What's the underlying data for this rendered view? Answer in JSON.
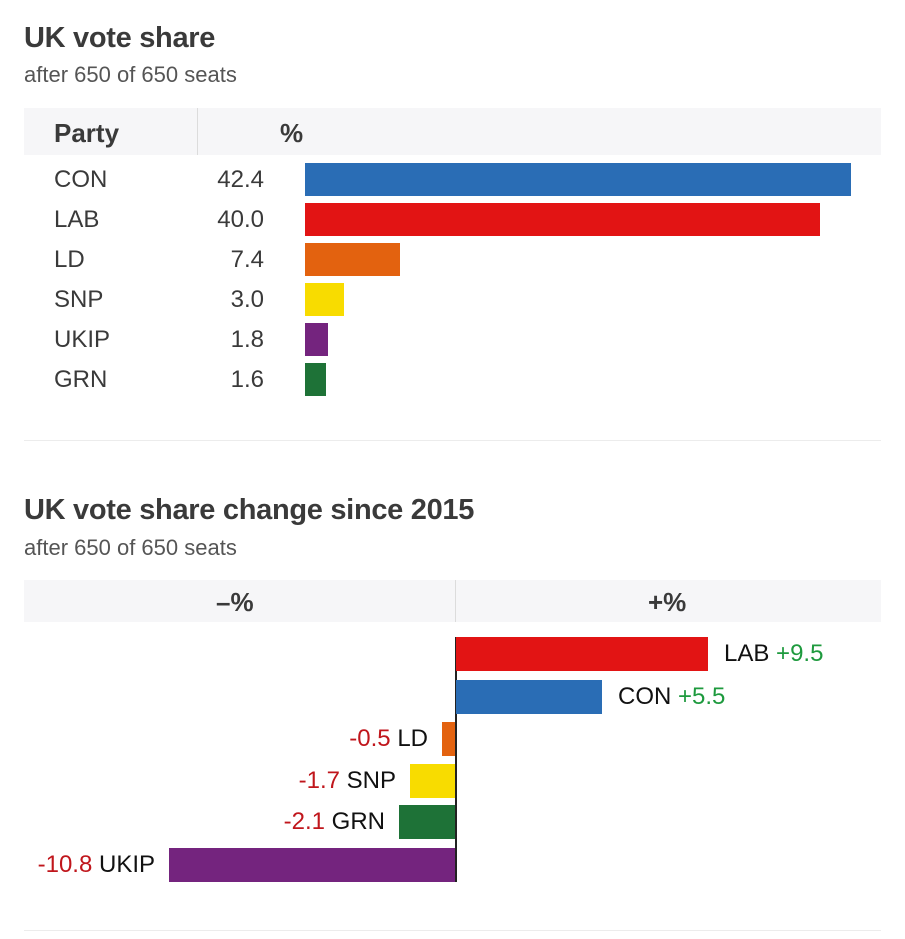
{
  "vote_share": {
    "title": "UK vote share",
    "subtitle": "after 650 of 650 seats",
    "header": {
      "party": "Party",
      "percent": "%"
    },
    "rows": [
      {
        "party": "CON",
        "value": "42.4",
        "color": "#2a6db5"
      },
      {
        "party": "LAB",
        "value": "40.0",
        "color": "#e21414"
      },
      {
        "party": "LD",
        "value": "7.4",
        "color": "#e3620f"
      },
      {
        "party": "SNP",
        "value": "3.0",
        "color": "#f8dc00"
      },
      {
        "party": "UKIP",
        "value": "1.8",
        "color": "#74247e"
      },
      {
        "party": "GRN",
        "value": "1.6",
        "color": "#1e7237"
      }
    ]
  },
  "vote_change": {
    "title": "UK vote share change since 2015",
    "subtitle": "after 650 of 650 seats",
    "header": {
      "negative": "–%",
      "positive": "+%"
    },
    "rows": [
      {
        "party": "LAB",
        "change": "+9.5",
        "color": "#e21414"
      },
      {
        "party": "CON",
        "change": "+5.5",
        "color": "#2a6db5"
      },
      {
        "party": "LD",
        "change": "-0.5",
        "color": "#e3620f"
      },
      {
        "party": "SNP",
        "change": "-1.7",
        "color": "#f8dc00"
      },
      {
        "party": "GRN",
        "change": "-2.1",
        "color": "#1e7237"
      },
      {
        "party": "UKIP",
        "change": "-10.8",
        "color": "#74247e"
      }
    ]
  },
  "colors": {
    "negative_text": "#c0161c",
    "positive_text": "#1e9a3e",
    "header_bg": "#f6f6f8"
  },
  "chart_data": [
    {
      "type": "bar",
      "orientation": "horizontal",
      "title": "UK vote share",
      "subtitle": "after 650 of 650 seats",
      "xlabel": "%",
      "ylabel": "Party",
      "categories": [
        "CON",
        "LAB",
        "LD",
        "SNP",
        "UKIP",
        "GRN"
      ],
      "values": [
        42.4,
        40.0,
        7.4,
        3.0,
        1.8,
        1.6
      ],
      "colors": [
        "#2a6db5",
        "#e21414",
        "#e3620f",
        "#f8dc00",
        "#74247e",
        "#1e7237"
      ],
      "grid": false,
      "legend": "none"
    },
    {
      "type": "bar",
      "orientation": "horizontal",
      "title": "UK vote share change since 2015",
      "subtitle": "after 650 of 650 seats",
      "xlabel_negative": "–%",
      "xlabel_positive": "+%",
      "categories": [
        "LAB",
        "CON",
        "LD",
        "SNP",
        "GRN",
        "UKIP"
      ],
      "values": [
        9.5,
        5.5,
        -0.5,
        -1.7,
        -2.1,
        -10.8
      ],
      "colors": [
        "#e21414",
        "#2a6db5",
        "#e3620f",
        "#f8dc00",
        "#1e7237",
        "#74247e"
      ],
      "grid": false,
      "legend": "none"
    }
  ]
}
